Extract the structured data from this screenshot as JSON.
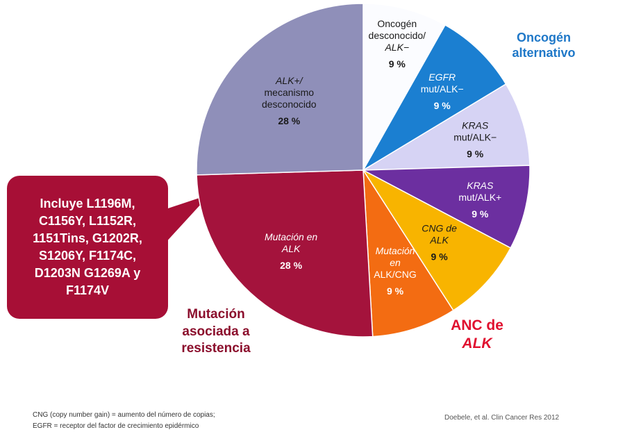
{
  "chart_data": {
    "type": "pie",
    "slices": [
      {
        "key": "unknown-oncogene",
        "lines": [
          "Oncogén",
          "desconocido/",
          "ALK−"
        ],
        "italic": [
          false,
          false,
          true
        ],
        "value": 9,
        "label": "9 %",
        "color": "#fbfcff",
        "textColor": "dark"
      },
      {
        "key": "egfr",
        "lines": [
          "EGFR",
          "mut/ALK−"
        ],
        "italic": [
          true,
          false
        ],
        "value": 9,
        "label": "9 %",
        "color": "#1b7fd1",
        "textColor": "light"
      },
      {
        "key": "kras-neg",
        "lines": [
          "KRAS",
          "mut/ALK−"
        ],
        "italic": [
          true,
          false
        ],
        "value": 9,
        "label": "9 %",
        "color": "#d6d3f4",
        "textColor": "dark"
      },
      {
        "key": "kras-pos",
        "lines": [
          "KRAS",
          "mut/ALK+"
        ],
        "italic": [
          true,
          false
        ],
        "value": 9,
        "label": "9 %",
        "color": "#6c2fa0",
        "textColor": "light"
      },
      {
        "key": "cng",
        "lines": [
          "CNG de",
          "ALK"
        ],
        "italic": [
          true,
          true
        ],
        "value": 9,
        "label": "9 %",
        "color": "#f8b400",
        "textColor": "dark"
      },
      {
        "key": "alk-cng",
        "lines": [
          "Mutación",
          "en",
          "ALK/CNG"
        ],
        "italic": [
          true,
          true,
          false
        ],
        "value": 9,
        "label": "9 %",
        "color": "#f36c12",
        "textColor": "light"
      },
      {
        "key": "alk-mutation",
        "lines": [
          "Mutación en",
          "ALK"
        ],
        "italic": [
          true,
          true
        ],
        "value": 28,
        "label": "28 %",
        "color": "#a4133c",
        "textColor": "light"
      },
      {
        "key": "alk-unknown",
        "lines": [
          "ALK+/",
          "mecanismo",
          "desconocido"
        ],
        "italic": [
          true,
          false,
          false
        ],
        "value": 28,
        "label": "28 %",
        "color": "#8f8fb9",
        "textColor": "dark"
      }
    ]
  },
  "groups": {
    "alternative": {
      "line1": "Oncogén",
      "line2": "alternativo"
    },
    "anc": {
      "line1": "ANC de",
      "line2": "ALK"
    },
    "resistance": {
      "line1": "Mutación",
      "line2": "asociada a",
      "line3": "resistencia"
    }
  },
  "callout": {
    "text": "Incluye L1196M,\nC1156Y, L1152R,\n1151Tins, G1202R,\nS1206Y, F1174C,\nD1203N G1269A y\nF1174V"
  },
  "footnotes": {
    "cng": "CNG (copy number gain) = aumento del número de copias;",
    "egfr": "EGFR = receptor del factor de crecimiento epidérmico",
    "source": "Doebele, et al. Clin Cancer Res 2012"
  },
  "colors": {
    "callout": "#a70f36",
    "alternative": "#1f78c8",
    "anc": "#e0102f",
    "resistance": "#8b0e2c"
  }
}
